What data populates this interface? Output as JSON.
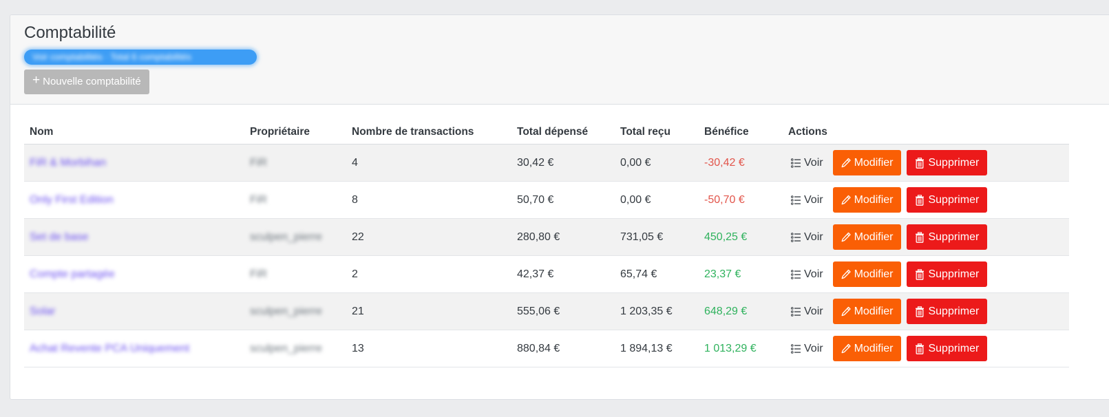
{
  "page": {
    "title": "Comptabilité",
    "breadcrumb": "Voir comptabilités · Total 6 comptabilités",
    "new_button_label": "Nouvelle comptabilité"
  },
  "table": {
    "headers": [
      "Nom",
      "Propriétaire",
      "Nombre de transactions",
      "Total dépensé",
      "Total reçu",
      "Bénéfice",
      "Actions"
    ],
    "rows": [
      {
        "name": "FiR & Morbihan",
        "owner": "FiR",
        "transactions": "4",
        "spent": "30,42 €",
        "received": "0,00 €",
        "profit": "-30,42 €",
        "profit_sign": "neg"
      },
      {
        "name": "Only First Edition",
        "owner": "FiR",
        "transactions": "8",
        "spent": "50,70 €",
        "received": "0,00 €",
        "profit": "-50,70 €",
        "profit_sign": "neg"
      },
      {
        "name": "Set de base",
        "owner": "sculpen_pierre",
        "transactions": "22",
        "spent": "280,80 €",
        "received": "731,05 €",
        "profit": "450,25 €",
        "profit_sign": "pos"
      },
      {
        "name": "Compte partagée",
        "owner": "FiR",
        "transactions": "2",
        "spent": "42,37 €",
        "received": "65,74 €",
        "profit": "23,37 €",
        "profit_sign": "pos"
      },
      {
        "name": "Solar",
        "owner": "sculpen_pierre",
        "transactions": "21",
        "spent": "555,06 €",
        "received": "1 203,35 €",
        "profit": "648,29 €",
        "profit_sign": "pos"
      },
      {
        "name": "Achat Revente PCA Uniquement",
        "owner": "sculpen_pierre",
        "transactions": "13",
        "spent": "880,84 €",
        "received": "1 894,13 €",
        "profit": "1 013,29 €",
        "profit_sign": "pos"
      }
    ]
  },
  "actions": {
    "view_label": "Voir",
    "edit_label": "Modifier",
    "delete_label": "Supprimer",
    "view_icon": "list-icon",
    "edit_icon": "pencil-icon",
    "delete_icon": "trash-icon"
  },
  "colors": {
    "primary_blue": "#3d9df5",
    "edit_orange": "#fa5f05",
    "delete_red": "#ec1a1a",
    "negative_text": "#e2554b",
    "positive_text": "#2fb25d"
  }
}
